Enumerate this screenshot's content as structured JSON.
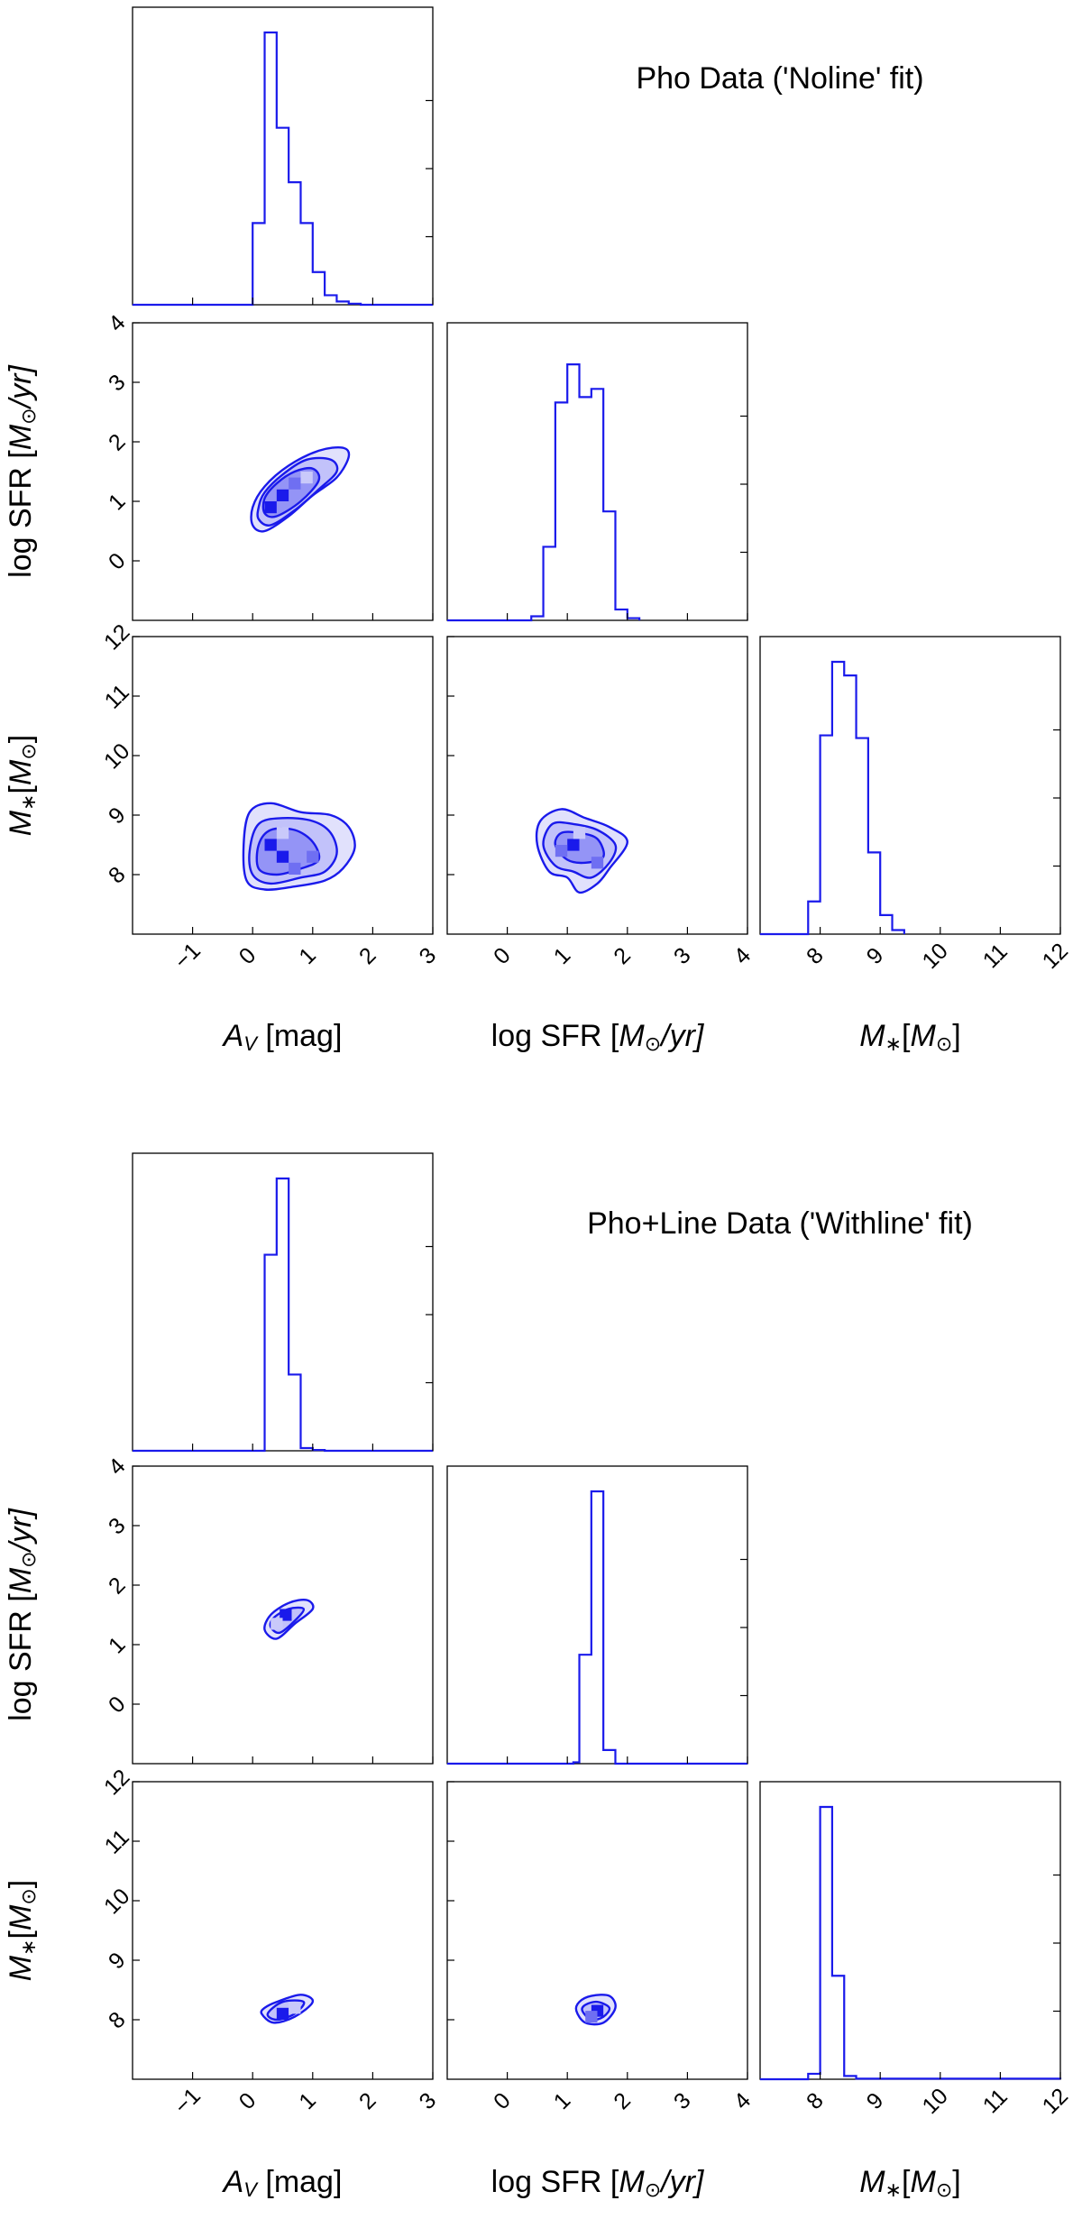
{
  "colors": {
    "line": "#1a1aeb",
    "fill_dark": "#1a1aeb",
    "fill_mid": "#6f6ff2",
    "fill_light": "#c9c9fa",
    "axis": "#000000"
  },
  "chart_data": [
    {
      "type": "corner",
      "title": "Pho Data ('Noline' fit)",
      "labels": {
        "av": "A_V [mag]",
        "av_sym": "A",
        "av_sub": "V",
        "av_unit": "[mag]",
        "sfr": "log SFR [M_⊙/yr]",
        "sfr_pre": "log SFR [",
        "sfr_M": "M",
        "sfr_sub": "⊙",
        "sfr_post": "/yr]",
        "mass": "M_*[M_⊙]",
        "mass_M": "M",
        "mass_sub": "∗",
        "mass_mid": "[",
        "mass_M2": "M",
        "mass_sub2": "⊙",
        "mass_post": "]"
      },
      "ticks": {
        "av": [
          "−1",
          "0",
          "1",
          "2",
          "3"
        ],
        "sfr": [
          "0",
          "1",
          "2",
          "3",
          "4"
        ],
        "mass": [
          "8",
          "9",
          "10",
          "11",
          "12"
        ]
      },
      "ranges": {
        "av": [
          -2,
          3
        ],
        "sfr": [
          -1,
          4
        ],
        "mass": [
          7,
          12
        ]
      },
      "hist_av": {
        "edges": [
          -0.2,
          0.0,
          0.2,
          0.4,
          0.6,
          0.8,
          1.0,
          1.2,
          1.4,
          1.6,
          1.8,
          2.0
        ],
        "counts": [
          0.0,
          0.3,
          1.0,
          0.65,
          0.45,
          0.3,
          0.12,
          0.035,
          0.012,
          0.004,
          0.0
        ]
      },
      "hist_sfr": {
        "edges": [
          0.2,
          0.4,
          0.6,
          0.8,
          1.0,
          1.2,
          1.4,
          1.6,
          1.8,
          2.0,
          2.2
        ],
        "counts": [
          0.0,
          0.015,
          0.27,
          0.8,
          0.94,
          0.82,
          0.85,
          0.4,
          0.04,
          0.008,
          0.0
        ]
      },
      "hist_mass": {
        "edges": [
          7.6,
          7.8,
          8.0,
          8.2,
          8.4,
          8.6,
          8.8,
          9.0,
          9.2,
          9.4
        ],
        "counts": [
          0.0,
          0.12,
          0.73,
          1.0,
          0.95,
          0.72,
          0.3,
          0.07,
          0.015,
          0.0
        ]
      },
      "contours": [
        {
          "panel": "sfr_vs_av",
          "levels": [
            [
              [
                0.0,
                0.6
              ],
              [
                0.2,
                0.5
              ],
              [
                0.6,
                0.75
              ],
              [
                1.0,
                1.1
              ],
              [
                1.4,
                1.4
              ],
              [
                1.6,
                1.75
              ],
              [
                1.5,
                1.9
              ],
              [
                1.1,
                1.85
              ],
              [
                0.6,
                1.6
              ],
              [
                0.2,
                1.25
              ],
              [
                0.0,
                0.9
              ]
            ],
            [
              [
                0.1,
                0.7
              ],
              [
                0.3,
                0.6
              ],
              [
                0.7,
                0.85
              ],
              [
                1.1,
                1.2
              ],
              [
                1.4,
                1.5
              ],
              [
                1.3,
                1.7
              ],
              [
                0.9,
                1.7
              ],
              [
                0.5,
                1.45
              ],
              [
                0.2,
                1.15
              ],
              [
                0.1,
                0.9
              ]
            ],
            [
              [
                0.2,
                0.8
              ],
              [
                0.4,
                0.75
              ],
              [
                0.8,
                1.0
              ],
              [
                1.1,
                1.35
              ],
              [
                1.0,
                1.55
              ],
              [
                0.7,
                1.5
              ],
              [
                0.4,
                1.3
              ],
              [
                0.2,
                1.05
              ]
            ]
          ],
          "cells": [
            [
              0.3,
              0.9,
              "dark"
            ],
            [
              0.5,
              1.1,
              "dark"
            ],
            [
              0.7,
              1.3,
              "mid"
            ],
            [
              0.9,
              1.4,
              "light"
            ]
          ]
        },
        {
          "panel": "mass_vs_av",
          "levels": [
            [
              [
                -0.1,
                7.9
              ],
              [
                0.2,
                7.75
              ],
              [
                0.7,
                7.8
              ],
              [
                1.2,
                7.9
              ],
              [
                1.5,
                8.1
              ],
              [
                1.7,
                8.45
              ],
              [
                1.6,
                8.8
              ],
              [
                1.3,
                9.0
              ],
              [
                0.8,
                9.05
              ],
              [
                0.3,
                9.2
              ],
              [
                -0.05,
                9.05
              ],
              [
                -0.15,
                8.5
              ]
            ],
            [
              [
                0.0,
                8.0
              ],
              [
                0.3,
                7.85
              ],
              [
                0.8,
                7.95
              ],
              [
                1.2,
                8.05
              ],
              [
                1.4,
                8.35
              ],
              [
                1.3,
                8.7
              ],
              [
                1.0,
                8.9
              ],
              [
                0.5,
                8.95
              ],
              [
                0.1,
                8.85
              ],
              [
                -0.05,
                8.4
              ]
            ],
            [
              [
                0.1,
                8.1
              ],
              [
                0.4,
                8.0
              ],
              [
                0.8,
                8.1
              ],
              [
                1.1,
                8.25
              ],
              [
                1.0,
                8.55
              ],
              [
                0.7,
                8.75
              ],
              [
                0.3,
                8.75
              ],
              [
                0.1,
                8.5
              ]
            ]
          ],
          "cells": [
            [
              0.3,
              8.5,
              "dark"
            ],
            [
              0.5,
              8.3,
              "dark"
            ],
            [
              0.7,
              8.1,
              "mid"
            ],
            [
              1.0,
              8.3,
              "mid"
            ],
            [
              0.5,
              8.7,
              "light"
            ]
          ]
        },
        {
          "panel": "mass_vs_sfr",
          "levels": [
            [
              [
                0.5,
                8.5
              ],
              [
                0.7,
                8.05
              ],
              [
                1.0,
                7.95
              ],
              [
                1.2,
                7.7
              ],
              [
                1.5,
                7.85
              ],
              [
                1.7,
                8.1
              ],
              [
                2.0,
                8.55
              ],
              [
                1.7,
                8.8
              ],
              [
                1.3,
                8.95
              ],
              [
                0.9,
                9.1
              ],
              [
                0.55,
                8.9
              ]
            ],
            [
              [
                0.6,
                8.5
              ],
              [
                0.8,
                8.15
              ],
              [
                1.1,
                8.05
              ],
              [
                1.4,
                7.95
              ],
              [
                1.7,
                8.2
              ],
              [
                1.8,
                8.5
              ],
              [
                1.5,
                8.75
              ],
              [
                1.1,
                8.85
              ],
              [
                0.75,
                8.85
              ]
            ],
            [
              [
                0.8,
                8.5
              ],
              [
                1.0,
                8.25
              ],
              [
                1.3,
                8.2
              ],
              [
                1.6,
                8.3
              ],
              [
                1.5,
                8.6
              ],
              [
                1.2,
                8.7
              ],
              [
                0.9,
                8.7
              ]
            ]
          ],
          "cells": [
            [
              1.1,
              8.5,
              "dark"
            ],
            [
              1.5,
              8.2,
              "mid"
            ],
            [
              0.9,
              8.4,
              "mid"
            ],
            [
              1.2,
              8.7,
              "light"
            ]
          ]
        }
      ]
    },
    {
      "type": "corner",
      "title": "Pho+Line Data ('Withline' fit)",
      "labels": {
        "av": "A_V [mag]",
        "av_sym": "A",
        "av_sub": "V",
        "av_unit": "[mag]",
        "sfr": "log SFR [M_⊙/yr]",
        "sfr_pre": "log SFR [",
        "sfr_M": "M",
        "sfr_sub": "⊙",
        "sfr_post": "/yr]",
        "mass": "M_*[M_⊙]",
        "mass_M": "M",
        "mass_sub": "∗",
        "mass_mid": "[",
        "mass_M2": "M",
        "mass_sub2": "⊙",
        "mass_post": "]"
      },
      "ticks": {
        "av": [
          "−1",
          "0",
          "1",
          "2",
          "3"
        ],
        "sfr": [
          "0",
          "1",
          "2",
          "3",
          "4"
        ],
        "mass": [
          "8",
          "9",
          "10",
          "11",
          "12"
        ]
      },
      "ranges": {
        "av": [
          -2,
          3
        ],
        "sfr": [
          -1,
          4
        ],
        "mass": [
          7,
          12
        ]
      },
      "hist_av": {
        "edges": [
          0.1,
          0.2,
          0.4,
          0.6,
          0.8,
          1.0,
          1.2,
          1.4
        ],
        "counts": [
          0.0,
          0.72,
          1.0,
          0.28,
          0.01,
          0.003,
          0.0
        ]
      },
      "hist_sfr": {
        "edges": [
          1.1,
          1.2,
          1.4,
          1.6,
          1.8,
          2.0
        ],
        "counts": [
          0.005,
          0.4,
          1.0,
          0.05,
          0.0
        ]
      },
      "hist_mass": {
        "edges": [
          7.7,
          7.8,
          8.0,
          8.2,
          8.4,
          8.6,
          12.0
        ],
        "counts": [
          0.0,
          0.02,
          1.0,
          0.38,
          0.012,
          0.002
        ]
      },
      "contours": [
        {
          "panel": "sfr_vs_av",
          "levels": [
            [
              [
                0.2,
                1.25
              ],
              [
                0.4,
                1.1
              ],
              [
                0.7,
                1.35
              ],
              [
                1.0,
                1.6
              ],
              [
                0.9,
                1.75
              ],
              [
                0.6,
                1.7
              ],
              [
                0.3,
                1.5
              ]
            ],
            [
              [
                0.3,
                1.3
              ],
              [
                0.45,
                1.2
              ],
              [
                0.7,
                1.4
              ],
              [
                0.85,
                1.6
              ],
              [
                0.6,
                1.6
              ],
              [
                0.35,
                1.45
              ]
            ]
          ],
          "cells": [
            [
              0.55,
              1.5,
              "dark"
            ],
            [
              0.4,
              1.35,
              "light"
            ]
          ]
        },
        {
          "panel": "mass_vs_av",
          "levels": [
            [
              [
                0.15,
                8.1
              ],
              [
                0.35,
                7.95
              ],
              [
                0.7,
                8.05
              ],
              [
                1.0,
                8.3
              ],
              [
                0.8,
                8.42
              ],
              [
                0.4,
                8.3
              ],
              [
                0.2,
                8.2
              ]
            ],
            [
              [
                0.25,
                8.1
              ],
              [
                0.4,
                8.0
              ],
              [
                0.7,
                8.1
              ],
              [
                0.85,
                8.3
              ],
              [
                0.5,
                8.3
              ]
            ]
          ],
          "cells": [
            [
              0.5,
              8.1,
              "dark"
            ],
            [
              0.7,
              8.2,
              "light"
            ]
          ]
        },
        {
          "panel": "mass_vs_sfr",
          "levels": [
            [
              [
                1.15,
                8.15
              ],
              [
                1.3,
                7.95
              ],
              [
                1.6,
                7.95
              ],
              [
                1.8,
                8.2
              ],
              [
                1.7,
                8.4
              ],
              [
                1.4,
                8.4
              ],
              [
                1.2,
                8.3
              ]
            ],
            [
              [
                1.25,
                8.15
              ],
              [
                1.4,
                8.0
              ],
              [
                1.6,
                8.05
              ],
              [
                1.7,
                8.2
              ],
              [
                1.5,
                8.3
              ],
              [
                1.3,
                8.25
              ]
            ]
          ],
          "cells": [
            [
              1.5,
              8.15,
              "dark"
            ],
            [
              1.4,
              8.05,
              "mid"
            ]
          ]
        }
      ]
    }
  ]
}
